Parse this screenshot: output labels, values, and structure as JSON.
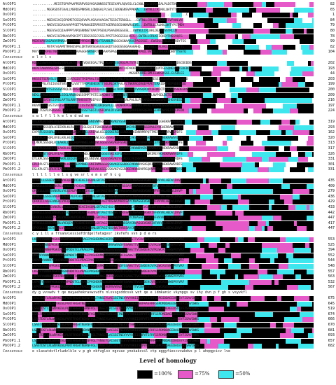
{
  "alignment": {
    "colors": {
      "identical": "#000000",
      "high": "#e659c8",
      "medium": "#3ee6ee",
      "text_on_black": "#ffffff"
    },
    "blocks": [
      {
        "rows": [
          {
            "name": "AtCOP1",
            "seq": "............MEISTGPVPAAPRSRPVSGVVGASNNSSGTEGEVAPLRQVSSLCLCKNLEKLSRPDAEALPLDSTDV",
            "end": "82"
          },
          {
            "name": "MdCOP1",
            "seq": "........MGGRSDSTGVALLMSRDGPNNSRLLQNQGALPLSALIGDGNGNSVPPKKA...EWTNLLCRLKKLQHTYTSTTL",
            "end": "65"
          },
          {
            "name": "OsCOP1",
            "seq": "....................................................................................C",
            "end": "1"
          },
          {
            "name": "SoCOP1",
            "seq": "........MGEHSIACQIPGMSTGSSQSVVPLVGAAVAAGAGTGSSGTSRGGLL...EWTNLLCRLKCIQEGYTSVPAWLVN",
            "end": "84"
          },
          {
            "name": "PtCOP1",
            "seq": "........MAEVSIGGAVAAAPPSETPRANAGEERPRSSTAGERRGSGSHKNVRQLVS...EWTDLLCRLKKLQHTYPSTMDV",
            "end": "79"
          },
          {
            "name": "SlCOP1",
            "seq": "........MGEVSAIQIAAPPPTAPQSRNNGTVAATPSENLPSAAEKGGGGSL..EWTNLLCRLKKLDEAYTSSTRLLN",
            "end": "80"
          },
          {
            "name": "RbCOP1",
            "seq": "........MAEVSIGGMVAAVPSKIPTSIDGSSGSCSSGLPPSTSPGGGSGLHAIS..EWTDLLCRLKCIQHEYTNSSVQFG",
            "end": "78"
          },
          {
            "name": "ZmCOP1",
            "seq": "MGDSVAVGAGAVAVPNAAAATTAAAAPPRSASAAPGATSAANLPNGGGAGNAAAAGPAGSSGE..EWSDLLCRLQCIQRDYTSS",
            "end": "99"
          },
          {
            "name": "PbCOP1.1",
            "seq": "........MSTATAGAPDTRRHESPALQNTGRVSGAGGSGSGDTSSGGSSGGAAAHAHQ...EWTNLLCRLKKLQHEYPSTTL",
            "end": "82"
          },
          {
            "name": "PbCOP1.2",
            "seq": "MVYSHTLKPEETNGLQPLSEPSTMAVAGGHSRSERTDGAAAPSPAQAGAEPRRPLPPPRPQQ.EWSDLLCRLKKIQHDYTSSTQ",
            "end": "104"
          }
        ],
        "consensus": "                                                          e  l  c  l                 s"
      },
      {
        "rows": [
          {
            "name": "AtCOP1",
            "seq": "KDKKISNVFHSTRAGVTRPLVKTSTRREVQGEEGALTPLCRLAPTSSGRQLPLTSTRIAPSLQPIPPRELRFHQMNESLDSCDEDDS",
            "end": "202"
          },
          {
            "name": "MdCOP1",
            "seq": "KKPETAHVVHSLSPGLSRSLKTKLASSLTCPLSRQLLKVSTLRQSGTVKTLKPAKKRFQKVTLLPESQLMTGESQNEALLTEDEDD",
            "end": "193"
          },
          {
            "name": "OsCOP1",
            "seq": ".....................................................MGSHPLKRELSMLLEWDSRSGS.ELSDLEE",
            "end": "44"
          },
          {
            "name": "SoCOP1",
            "seq": "KKSSETSIRHSLSYGVSRSISRTQISTTMIPRVLTSLSRTGQLLATLRNLPSLKKNLPRIRLGLQSESELIGEGPLDNDSEGEED",
            "end": "203"
          },
          {
            "name": "PtCOP1",
            "seq": "KKTKPPSLVSIIGSGTSRSLERLVSTTTPQPSEHEEKTTSGLRLQKTAVLFLTNKRRQIRQEPRPETERAIDNFSEPSDEEEDD",
            "end": "199"
          },
          {
            "name": "SlCOP1",
            "seq": "KSAERNSVVTSISSGVPRQLDLRNSHSDSLMTVAIAAAQLKLTVSLTKAKHKSKKLTVHSQRQVPIFQNIQTGSEAHDSGDEEDS",
            "end": "200"
          },
          {
            "name": "RbCOP1",
            "seq": "NEKLLPKSVVQHDGSLSEGLARQNSNSSSMPTPSTEIQKQNKFSLLVNLMQTPKKKFKQQGSLRELNVPSDLDETEHDEFDD",
            "end": "209"
          },
          {
            "name": "ZmCOP1",
            "seq": "PGKPFPSVIVSISVGLAPTSLRRRTRHSSSTPDIPSSYERRTGLAKKRRKLRLPALSLPSLKRIQERRDNYPETEHGSVEEDE",
            "end": "216"
          },
          {
            "name": "PbCOP1.1",
            "seq": "KKAMTTLSAVSTSVGISKRLPQLPTTISSTSCNPRLQKQRSPLLLQAQNRKPGSRQQRKVTPFRETEVVNDSSSHSEDEEHD",
            "end": "197"
          },
          {
            "name": "PbCOP1.2",
            "seq": "GKPLTGSVLRSASSGLTKSLLRKNQSRSSSTSEGTLQSFQKVLDTSSKRVLKLQRRPIRKSQSPRLGEHRDNYPEIDDEPEDD",
            "end": "224"
          }
        ],
        "consensus": "                                              s  w  l  f l  l   k  e l    e d  ed  ee"
      },
      {
        "rows": [
          {
            "name": "AtCOP1",
            "seq": "DTLKPLATSQRLRVEARRLHEQLKEPPRWDLGNIVWMGGGGSSKVKEYGGRDGCVKVWDVSHSQCVMEYLGHEKRAWSVDFS",
            "end": "319"
          },
          {
            "name": "MdCOP1",
            "seq": "SLMEPLSSSQRLAIEEKRLKLRLRELTGSLGQIITSNGWSWLAKVKEYGGGDKCVRIWHVPSSERVLEYHGHERRAWSVDFS",
            "end": "293"
          },
          {
            "name": "OsCOP1",
            "seq": "EAPRFLSSSQRLAFEEKRLHEQLKEPFRWELGRIAWLGGGGSSKIRELGGRDGCVKIWNVMRPQTTMEFLGHERRVWSVDFS",
            "end": "162"
          },
          {
            "name": "SoCOP1",
            "seq": "DLLKPLSTSQRLRVELKRLHEQLKEPPRWELGNIVWLGGGGSSKVKEYGGRDGCVKVWDVSHSKRIMEYHGHEKRAWSVDFS",
            "end": "320"
          },
          {
            "name": "PtCOP1",
            "seq": "DLMKPLSSSQRLRIEAKRLQQQLRQPPKWELGNIIWLGGGGSSKVKEFGGRDGCVKIWDVPHTHRVLEYHGHEKRAWSVDFS",
            "end": "313"
          },
          {
            "name": "SlCOP1",
            "seq": "DVLKPLSSSQRLQIEAKRLHEQLKEPPRWELGNIVWMGGGGSSKVKEYGGGDGCVKVWDVSRSHCVMEYLGHEKRAWSVDFS",
            "end": "317"
          },
          {
            "name": "RbCOP1",
            "seq": "DTLRPLSTSQRLRVEAKRLHEQLKEPFRWDLGNIVWLGGGGSSKIKEFGGRDGCVKVWDVTRSQRIMEYHGHEKRVWSVDFS",
            "end": "326"
          },
          {
            "name": "ZmCOP1",
            "seq": "DTLKPLSSSQRLRIEAKRLQEQLRQPPKWDLGNIVWLGGGGSSKVKEYGGRDGCVKIWNVPRSHCVMEYHGHEKRAWSVDFS",
            "end": "331"
          },
          {
            "name": "PbCOP1.1",
            "seq": "EPLRPLSTSQRLRIEAKRLHEQLKEPPRWELGNIIWMGGGGSSKVKEFGGRDGCVKVWDVSHSQRIMEYHGHEKRAWSVDFS",
            "end": "301"
          },
          {
            "name": "PbCOP1.2",
            "seq": "DSLKPLSTSQRLRIEAKRLQEQLKEPFRWELGNIVWLGGGGSSKVKEYGGRDGCVKVWDVPRSQRVMEYHGHEKRVWSVDFS",
            "end": "331"
          }
        ],
        "consensus": "  l  l    l  l   l  l  e     l    s   g  ve  sr        l  e  m   s  vf        h c        g"
      },
      {
        "rows": [
          {
            "name": "AtCOP1",
            "seq": "QFKKLLLGSGEVSGRLVVEQEMLPCHEAEIAGQNLGRTASIYDGHWLMARSSAYCNVASGEVGKRIVFVHYKLHEDVLDVVP",
            "end": "435"
          },
          {
            "name": "MdCOP1",
            "seq": "NLKKLLLGSQCVNGRLVVHQEQLPCHQAEIAGQNLGRTASIYDGHWLTARSSAYCNVASGEVGKRIVFVHYKLNEDVLDVFP",
            "end": "409"
          },
          {
            "name": "OsCOP1",
            "seq": "QFKKLLLSSGSVNGRLVVEQEMLPCHEADIAGQNLGRTASIYDGHWLTARSSAYCNVASGEVGKRIVFVHYKLHEDVLDVVP",
            "end": "279"
          },
          {
            "name": "SoCOP1",
            "seq": "QFRKLLLGSGEVNGRLVVEQEMLPCHDAEIAGQNLGRTASIYDGHWLMARSSAYCNVASGEVGKRIVFVHYKLHEDVLDVVP",
            "end": "436"
          },
          {
            "name": "PtCOP1",
            "seq": "QFKKLLLASGEVNGRLVVEQEMLPCHEAEIAGQNLGRTASIYDGHWLMARSSAYCNVASGEVGKRIVFVHYKLHEDVLDVVP",
            "end": "429"
          },
          {
            "name": "SlCOP1",
            "seq": "QFRKLLLGSGEVNGRLVVEQEMLPCHEAEIAGQNLGRTASIYDGHWLMARSSAYCNVASGEVGKRIVFVHYKLHEDVLDVVP",
            "end": "433"
          },
          {
            "name": "RbCOP1",
            "seq": "QFRKLLLGSGDVNGRLVVDQEMLPCHEAEIAGQNLGRTASIYDGHWLTARSSAYCNVASGEVGKRIVFVHYKLHEDVLDVVP",
            "end": "442"
          },
          {
            "name": "ZmCOP1",
            "seq": "QFKKLLLASGEVSGRLVVEQEMLPCHEAEIAGQNLGRTASIYDGHWLMARSSAYCNVASGEVGKRIVFVHYKLHEDVLDVVP",
            "end": "447"
          },
          {
            "name": "PbCOP1.1",
            "seq": "QFRKLLLGSGEVNGRLVVEQEMLPCHDADIAGQNLGRTASIYDGHWLMARSSAYCNVASGEVGKRIVFVHYKLHEDVLDVVP",
            "end": "417"
          },
          {
            "name": "PbCOP1.2",
            "seq": "QFKKLLLSSGEVNGRLVVEQEMLPCHEAEIAGQNLGRTASIYDGHWLTARSSAYCNVASGEVGKRIVFVHYKLHEDVLDVVP",
            "end": "447"
          }
        ],
        "consensus": "         c          y  i   ll  a  frsanviessiefdrdgelfatagvsr ikvfefs vvn  p d         e  rs"
      },
      {
        "rows": [
          {
            "name": "AtCOP1",
            "seq": "LKPVHYVWNHPKSKCNRGWPDDDTCLVRAGIPVGHEKMKEHERRAWSVDFSSAHGTTVCDADEKCVYKLWCASSVWSPVYVRF",
            "end": "553"
          },
          {
            "name": "MdCOP1",
            "seq": "IKSVCYVWNEPKSKCNRGWPHADTCLVRAGIPVGHEKMKEHERRAWSVDFSSAHGTTVCDADEKCVYKLWCASSVWSPVYVRF",
            "end": "525"
          },
          {
            "name": "OsCOP1",
            "seq": "LRPVHYVWNHPRSKCNRGWPDDSTCLVRAGIPVGHEKMKEHERRVWSVDFSSAHGTTVCDADEKCVYKLWCASSVWSPVYVRF",
            "end": "394"
          },
          {
            "name": "SoCOP1",
            "seq": "LKSVHYVWNHPKSKCNRGWPNDDTCLVRAGIPVGHEKMKEHERRAWSVDFSSAHGTTVCDADEKCVYKLWCASSVWSPVYVRF",
            "end": "552"
          },
          {
            "name": "PtCOP1",
            "seq": "LKPVHYVWNHPKSKCNRGWPDDDTCLVRAGIPVGHEKMKEHERRAWSVDFSSAHGTTVCDADEKCVYKLWCASSVWSPVYVRF",
            "end": "544"
          },
          {
            "name": "SlCOP1",
            "seq": "LKPVHYVWNHPRSKCNRGWPDDDTCLVRAGIPVGHEKMKEHERRAWSVDFSSAHGTTVCDADEKCVYKLWCASSVWSPVYVRF",
            "end": "548"
          },
          {
            "name": "RbCOP1",
            "seq": "LKSVHYVWNHPKSKCNRGWPHDDTCLVRAGIPVGHEKMKEHERRVWSVDFSSAHGTTVCDADEKCVYKLWCASSVWSPVYVRF",
            "end": "557"
          },
          {
            "name": "ZmCOP1",
            "seq": "LRPVHYVWNHPRSKCNRGWPDDSTCLVRAGIPVGHEKMKEHERRAWSVDFSSAHGTTVCDADEKCVYKLWCASSVWSPVYVRF",
            "end": "563"
          },
          {
            "name": "PbCOP1.1",
            "seq": "LKPVHYVWNHPKSKCNRGWPNDDTCLVRAGIPVGHEKMKEHERRAWSVDFSSAHGTTVCDADEKCVYKLWCASSVWSPVYVRF",
            "end": "532"
          },
          {
            "name": "PbCOP1.2",
            "seq": "LKPVHYVWNHPRSKCNRGWPDDDTCLVRAGIPVGHEKMKEHERRVWSVDFSSAHGTTVCDADEKCVYKLWCASSVWSPVYVRF",
            "end": "567"
          }
        ],
        "consensus": "dy g vvvwdv t qe  mayaehekravwsvdfs   nlsvsgsddcsvk wct  qe e   idmkanic  vkynpgs     sv    ihy  dvn    p  f  gh  s  vsyvkfl"
      },
      {
        "rows": [
          {
            "name": "AtCOP1",
            "seq": "LSASTDSTLRLWDVKENLPVRTFRGHTNEKNFVGLTVNSEYLACGSETNEVYVYHKEISRPVTSFRFGSPDIDDAEEDNGSYFISAVCWKS",
            "end": "675"
          },
          {
            "name": "MdCOP1",
            "seq": "LSASTDSTLRLWDVKENLPVRTFKGHTNEKNFVGLTVNSEYLACGSETNEVFVYHKAISKPAASFRFGSPDMDDAEEDAGSYFISAVCWKS",
            "end": "645"
          },
          {
            "name": "OsCOP1",
            "seq": "LSASTDSTLRLWDVKENLPLRTFRGHTNEKNFVGLTVNSEYLACGSETNEVYVYHKEISRPVTSFRFGSPDMDEAEEDSGSYFISAVCWKS",
            "end": "519"
          },
          {
            "name": "SoCOP1",
            "seq": "LSASTDSTLRLWDVKENLPVRTFRGHTNEKNFVGLTVNSEYLACGSETNEVYVYHKEISRPVTSFRFGSPDMEDAEEDAGSYFISAVCWKS",
            "end": "674"
          },
          {
            "name": "PtCOP1",
            "seq": "LSASTDSTLRLWDVKENLPVRTFRGHTNEKNFVGLTVNSEYLACGSETNEVYVYHKEISRPVTSFRFGSPDMDDAEEDAGSYFISAVCWKS",
            "end": "666"
          },
          {
            "name": "SlCOP1",
            "seq": "LSASTDSTLRLWDVKENLPVRTFRGHTNEKNFVGLTVNSEYLACGSETNEVYVYHKEISRPVTSFRFGSPDMDDAEEDAGSYFISAVCWKS",
            "end": "670"
          },
          {
            "name": "RbCOP1",
            "seq": "LSASTDSTLRLWDVKENLPVRTFRGHTNEKNFVGLTVNSEYLACGSETNEVYVYHKEISRPVTSFRFGSPDMDDAEEDAGSYFISAVCWKS",
            "end": "681"
          },
          {
            "name": "ZmCOP1",
            "seq": "LSASTDSTLRLWDVKENLPLRTFRGHTNEKNFVGLTVNSEYLACGSETNEVYVYHKEISRPVTSFRFGSPDMDEAEEDSGSYFISAVCWKS",
            "end": "693"
          },
          {
            "name": "PbCOP1.1",
            "seq": "LSASTDSTLRLWDVKENLPVRTFRGHTNEKNFVGLTVNSEYLACGSETNEVYVYHKEISRPVTSFRFGSPDMDDAEEDAGSYFISAVCWKS",
            "end": "657"
          },
          {
            "name": "PbCOP1.2",
            "seq": "LSASTDSTLRLWDVKENLPVRTFRGHTNEKNFVGLTVNSEYLACGSETNEVYVYHKEISRPVTSFRFGSPDMDDAEEDAGSYFISAVCWKS",
            "end": "682"
          }
        ],
        "consensus": "e  slasatdstlrlwdvlkle  v      p      gh    nkfvglsv     ngsvac   ynekakcvil   ctp  eggyfiescvcwkdvs  p   l ahqqgcicv lve"
      }
    ]
  },
  "legend": {
    "title": "Level of homology",
    "items": [
      {
        "label": "=100%",
        "color": "#000000"
      },
      {
        "label": "=75%",
        "color": "#e659c8"
      },
      {
        "label": "=50%",
        "color": "#3ee6ee"
      }
    ]
  }
}
